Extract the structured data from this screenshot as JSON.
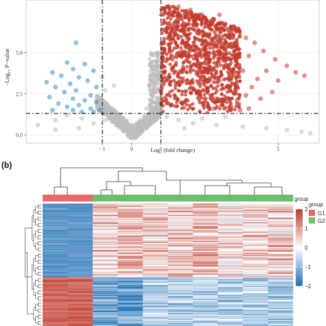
{
  "colors": {
    "up": "#c23b2e",
    "down": "#3a8cc6",
    "ns": "#bdbdbd",
    "heat_high": "#c0392b",
    "heat_mid": "#ffffff",
    "heat_low": "#1f6fb4",
    "group_G1": "#e8696b",
    "group_G2": "#6cbf6a"
  },
  "chart_data": [
    {
      "type": "scatter",
      "title": "",
      "xlabel": "Log₂ (fold change)",
      "ylabel": "−Log₁₀ P−value",
      "xlim": [
        -3.6,
        6.4
      ],
      "ylim": [
        -0.5,
        8.2
      ],
      "x_ticks": [
        -1,
        0,
        1,
        5
      ],
      "x_tick_labels": [
        "−1",
        "0",
        "1",
        "5"
      ],
      "y_ticks": [
        0.0,
        2.5,
        5.0
      ],
      "y_tick_labels": [
        "0.0",
        "2.5",
        "5.0"
      ],
      "thresholds": {
        "log2fc": [
          -1,
          1
        ],
        "neg_log10_p": 1.3
      },
      "grid": true,
      "series": [
        {
          "color_role": "up",
          "points": [
            [
              1.6,
              7.8
            ],
            [
              2.0,
              7.6
            ],
            [
              2.4,
              7.3
            ],
            [
              2.8,
              7.0
            ],
            [
              3.1,
              6.8
            ],
            [
              2.6,
              6.6
            ],
            [
              3.4,
              6.3
            ],
            [
              3.7,
              6.0
            ],
            [
              2.2,
              7.2
            ],
            [
              3.0,
              7.3
            ],
            [
              2.9,
              6.4
            ],
            [
              3.9,
              5.9
            ],
            [
              4.2,
              5.6
            ],
            [
              4.5,
              5.1
            ],
            [
              4.9,
              4.6
            ],
            [
              5.3,
              4.2
            ],
            [
              5.6,
              3.8
            ],
            [
              5.9,
              3.6
            ],
            [
              4.0,
              4.8
            ],
            [
              3.6,
              5.2
            ],
            [
              4.6,
              3.9
            ],
            [
              5.0,
              3.3
            ],
            [
              4.3,
              3.4
            ],
            [
              3.8,
              3.9
            ],
            [
              3.2,
              4.5
            ],
            [
              3.5,
              3.6
            ],
            [
              4.1,
              2.9
            ],
            [
              4.8,
              2.6
            ],
            [
              3.9,
              2.4
            ],
            [
              3.3,
              2.9
            ],
            [
              3.0,
              3.3
            ],
            [
              3.6,
              2.1
            ],
            [
              4.4,
              2.2
            ],
            [
              2.9,
              2.2
            ],
            [
              3.1,
              1.9
            ],
            [
              4.0,
              1.6
            ],
            [
              3.7,
              1.5
            ],
            [
              3.4,
              1.7
            ],
            [
              2.8,
              1.6
            ],
            [
              3.0,
              4.9
            ],
            [
              2.7,
              5.6
            ],
            [
              3.3,
              6.0
            ]
          ]
        },
        {
          "color_role": "down",
          "points": [
            [
              -1.9,
              5.6
            ],
            [
              -2.2,
              4.4
            ],
            [
              -1.6,
              4.3
            ],
            [
              -2.0,
              4.0
            ],
            [
              -2.7,
              3.8
            ],
            [
              -1.3,
              3.9
            ],
            [
              -2.4,
              3.6
            ],
            [
              -1.8,
              3.5
            ],
            [
              -2.9,
              3.2
            ],
            [
              -2.1,
              3.1
            ],
            [
              -1.5,
              3.3
            ],
            [
              -1.2,
              2.9
            ],
            [
              -2.6,
              2.9
            ],
            [
              -1.9,
              2.7
            ],
            [
              -2.3,
              2.6
            ],
            [
              -1.4,
              2.4
            ],
            [
              -2.8,
              2.3
            ],
            [
              -2.0,
              2.2
            ],
            [
              -1.6,
              2.1
            ],
            [
              -1.2,
              2.0
            ],
            [
              -2.5,
              1.9
            ],
            [
              -1.8,
              1.8
            ],
            [
              -2.2,
              1.7
            ],
            [
              -1.4,
              1.6
            ],
            [
              -2.0,
              1.5
            ],
            [
              -1.1,
              1.5
            ],
            [
              -2.7,
              1.5
            ],
            [
              -1.7,
              1.4
            ],
            [
              -1.3,
              1.4
            ]
          ]
        },
        {
          "color_role": "ns",
          "points": [
            [
              -0.6,
              3.0
            ],
            [
              -0.9,
              2.7
            ],
            [
              -1.0,
              3.5
            ],
            [
              -1.1,
              2.3
            ],
            [
              -0.8,
              1.4
            ],
            [
              -2.2,
              1.2
            ],
            [
              -1.7,
              1.0
            ],
            [
              -2.6,
              0.9
            ],
            [
              -3.2,
              0.6
            ],
            [
              -1.3,
              0.7
            ],
            [
              -0.9,
              0.9
            ],
            [
              -0.5,
              0.7
            ],
            [
              0.2,
              0.5
            ],
            [
              0.5,
              1.6
            ],
            [
              0.7,
              2.4
            ],
            [
              0.8,
              3.4
            ],
            [
              0.9,
              4.2
            ],
            [
              0.95,
              5.0
            ],
            [
              0.6,
              3.0
            ],
            [
              1.2,
              1.1
            ],
            [
              1.6,
              0.9
            ],
            [
              2.1,
              0.7
            ],
            [
              2.9,
              0.6
            ],
            [
              3.8,
              0.5
            ],
            [
              4.6,
              0.4
            ],
            [
              5.3,
              0.3
            ],
            [
              5.8,
              0.2
            ],
            [
              6.1,
              0.1
            ],
            [
              2.4,
              1.0
            ],
            [
              3.2,
              1.1
            ],
            [
              1.8,
              0.4
            ],
            [
              -0.3,
              0.3
            ],
            [
              -1.8,
              0.4
            ],
            [
              -2.6,
              0.3
            ]
          ]
        }
      ]
    },
    {
      "type": "heatmap",
      "title": "",
      "rows": 150,
      "columns": 10,
      "groups": [
        "G1",
        "G1",
        "G2",
        "G2",
        "G2",
        "G2",
        "G2",
        "G2",
        "G2",
        "G2"
      ],
      "color_scale": {
        "min": -2,
        "max": 2,
        "ticks": [
          2,
          1,
          0,
          -1,
          -2
        ]
      },
      "legend": {
        "title": "group",
        "entries": [
          "G1",
          "G2"
        ],
        "placement": "right"
      },
      "annotation_label": "group"
    }
  ],
  "panel_labels": {
    "b": "(b)"
  },
  "legend_labels": {
    "annotation": "group",
    "group_title": "group",
    "g1": "G1",
    "g2": "G2",
    "scale": [
      "2",
      "1",
      "0",
      "−1",
      "−2"
    ]
  }
}
